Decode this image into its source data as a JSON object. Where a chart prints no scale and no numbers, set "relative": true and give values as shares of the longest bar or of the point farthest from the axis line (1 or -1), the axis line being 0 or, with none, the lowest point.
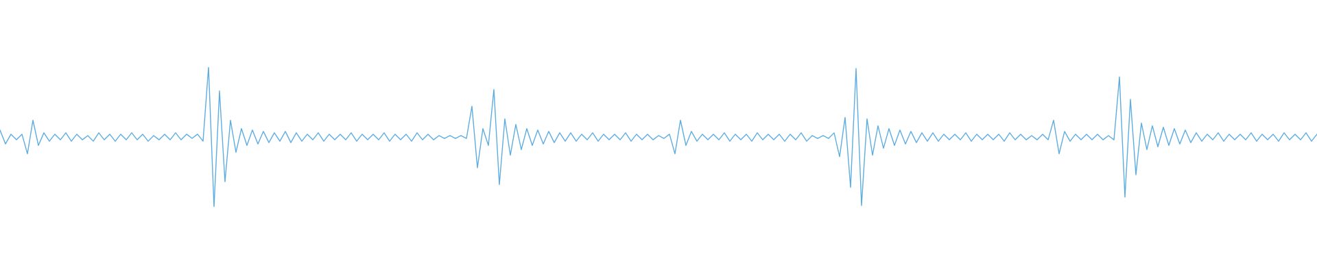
{
  "chart_data": {
    "type": "line",
    "relative": true,
    "tick_labels": false,
    "color": "#5dade2",
    "categories": [
      null,
      null,
      null,
      null,
      null,
      null,
      null,
      null,
      null,
      null,
      null,
      null,
      null,
      null,
      null,
      null,
      null,
      null,
      null,
      null,
      null,
      null,
      null,
      null,
      null,
      null,
      null,
      null,
      null,
      null,
      null,
      null,
      null,
      null,
      null,
      null,
      null,
      null,
      null,
      null,
      null,
      null,
      null,
      null,
      null,
      null,
      null,
      null,
      null,
      null,
      null,
      null,
      null,
      null,
      null,
      null,
      null,
      null,
      null,
      null,
      null,
      null,
      null,
      null,
      null,
      null,
      null,
      null,
      null,
      null,
      null,
      null,
      null,
      null,
      null,
      null,
      null,
      null,
      null,
      null,
      null,
      null,
      null,
      null,
      null,
      null,
      null,
      null,
      null,
      null,
      null,
      null,
      null,
      null,
      null,
      null,
      null,
      null,
      null,
      null,
      null,
      null,
      null,
      null,
      null,
      null,
      null,
      null,
      null,
      null,
      null,
      null,
      null,
      null,
      null,
      null,
      null,
      null,
      null,
      null,
      null,
      null,
      null,
      null,
      null,
      null,
      null,
      null,
      null,
      null,
      null,
      null,
      null,
      null,
      null,
      null,
      null,
      null,
      null,
      null,
      null,
      null,
      null,
      null,
      null,
      null,
      null,
      null,
      null,
      null,
      null,
      null,
      null,
      null,
      null,
      null,
      null,
      null,
      null,
      null,
      null,
      null,
      null,
      null,
      null,
      null,
      null,
      null,
      null,
      null,
      null,
      null,
      null,
      null,
      null,
      null,
      null,
      null,
      null,
      null,
      null,
      null,
      null,
      null,
      null,
      null,
      null,
      null,
      null,
      null,
      null,
      null,
      null,
      null,
      null,
      null,
      null,
      null,
      null,
      null,
      null,
      null,
      null,
      null,
      null,
      null,
      null,
      null,
      null,
      null,
      null,
      null,
      null,
      null,
      null,
      null,
      null,
      null,
      null,
      null,
      null,
      null,
      null,
      null,
      null,
      null,
      null,
      null,
      null,
      null,
      null,
      null,
      null,
      null,
      null,
      null,
      null,
      null,
      null,
      null,
      null
    ],
    "values": [
      0.55,
      0.45,
      0.52,
      0.48,
      0.52,
      0.38,
      0.62,
      0.44,
      0.53,
      0.47,
      0.52,
      0.48,
      0.53,
      0.47,
      0.52,
      0.48,
      0.51,
      0.47,
      0.53,
      0.48,
      0.52,
      0.47,
      0.52,
      0.48,
      0.53,
      0.48,
      0.52,
      0.47,
      0.51,
      0.48,
      0.52,
      0.48,
      0.53,
      0.48,
      0.52,
      0.49,
      0.52,
      0.47,
      1.0,
      0.0,
      0.83,
      0.18,
      0.62,
      0.39,
      0.56,
      0.44,
      0.55,
      0.45,
      0.54,
      0.46,
      0.53,
      0.47,
      0.54,
      0.46,
      0.53,
      0.47,
      0.52,
      0.48,
      0.53,
      0.47,
      0.52,
      0.48,
      0.52,
      0.48,
      0.53,
      0.47,
      0.52,
      0.48,
      0.52,
      0.48,
      0.53,
      0.47,
      0.52,
      0.48,
      0.52,
      0.47,
      0.53,
      0.48,
      0.52,
      0.48,
      0.51,
      0.49,
      0.51,
      0.49,
      0.51,
      0.49,
      0.72,
      0.28,
      0.56,
      0.44,
      0.84,
      0.16,
      0.63,
      0.37,
      0.59,
      0.41,
      0.56,
      0.44,
      0.55,
      0.45,
      0.54,
      0.46,
      0.53,
      0.47,
      0.53,
      0.47,
      0.52,
      0.48,
      0.53,
      0.47,
      0.52,
      0.48,
      0.52,
      0.48,
      0.53,
      0.47,
      0.52,
      0.48,
      0.52,
      0.48,
      0.51,
      0.49,
      0.52,
      0.38,
      0.62,
      0.44,
      0.54,
      0.47,
      0.52,
      0.48,
      0.52,
      0.48,
      0.53,
      0.47,
      0.52,
      0.48,
      0.52,
      0.47,
      0.53,
      0.48,
      0.52,
      0.48,
      0.52,
      0.47,
      0.52,
      0.48,
      0.53,
      0.47,
      0.51,
      0.49,
      0.51,
      0.49,
      0.53,
      0.36,
      0.64,
      0.14,
      0.99,
      0.01,
      0.63,
      0.37,
      0.58,
      0.42,
      0.56,
      0.44,
      0.55,
      0.45,
      0.54,
      0.46,
      0.53,
      0.47,
      0.53,
      0.47,
      0.52,
      0.48,
      0.52,
      0.48,
      0.53,
      0.47,
      0.52,
      0.48,
      0.52,
      0.48,
      0.52,
      0.47,
      0.53,
      0.48,
      0.52,
      0.48,
      0.51,
      0.48,
      0.52,
      0.48,
      0.62,
      0.38,
      0.54,
      0.47,
      0.52,
      0.48,
      0.52,
      0.48,
      0.52,
      0.48,
      0.51,
      0.48,
      0.93,
      0.07,
      0.77,
      0.23,
      0.6,
      0.41,
      0.58,
      0.43,
      0.57,
      0.44,
      0.56,
      0.45,
      0.55,
      0.46,
      0.53,
      0.47,
      0.52,
      0.48,
      0.53,
      0.47,
      0.52,
      0.48,
      0.52,
      0.48,
      0.53,
      0.47,
      0.52,
      0.48,
      0.52,
      0.47,
      0.53,
      0.48,
      0.52,
      0.48,
      0.53,
      0.47,
      0.52
    ]
  }
}
